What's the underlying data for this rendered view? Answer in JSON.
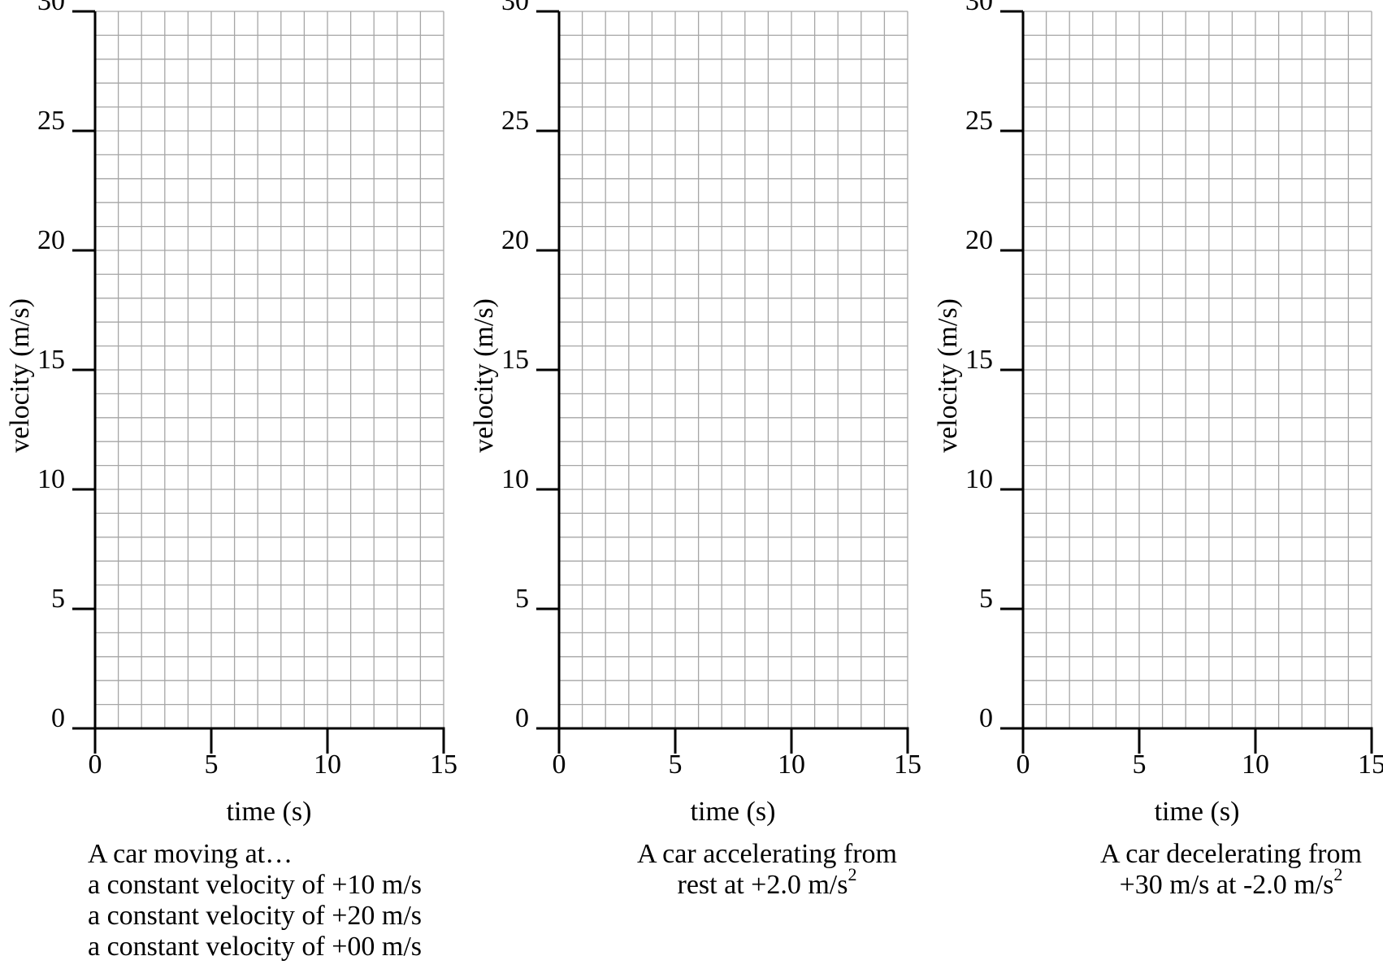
{
  "chart_data": [
    {
      "type": "line",
      "xlabel": "time (s)",
      "ylabel": "velocity (m/s)",
      "xlim": [
        0,
        15
      ],
      "ylim": [
        0,
        30
      ],
      "x_ticks": [
        0,
        5,
        10,
        15
      ],
      "y_ticks": [
        0,
        5,
        10,
        15,
        20,
        25,
        30
      ],
      "x_minor_step": 1,
      "y_minor_step": 1,
      "grid": true,
      "series": [],
      "caption": {
        "lines": [
          "A car moving at…",
          "a constant velocity of +10 m/s",
          "a constant velocity of +20 m/s",
          "a constant velocity of +00 m/s"
        ]
      }
    },
    {
      "type": "line",
      "xlabel": "time (s)",
      "ylabel": "velocity (m/s)",
      "xlim": [
        0,
        15
      ],
      "ylim": [
        0,
        30
      ],
      "x_ticks": [
        0,
        5,
        10,
        15
      ],
      "y_ticks": [
        0,
        5,
        10,
        15,
        20,
        25,
        30
      ],
      "x_minor_step": 1,
      "y_minor_step": 1,
      "grid": true,
      "series": [],
      "caption": {
        "line1": "A car  accelerating from",
        "line2": "rest at +2.0 m/s",
        "line2_sup": "2"
      }
    },
    {
      "type": "line",
      "xlabel": "time (s)",
      "ylabel": "velocity (m/s)",
      "xlim": [
        0,
        15
      ],
      "ylim": [
        0,
        30
      ],
      "x_ticks": [
        0,
        5,
        10,
        15
      ],
      "y_ticks": [
        0,
        5,
        10,
        15,
        20,
        25,
        30
      ],
      "x_minor_step": 1,
      "y_minor_step": 1,
      "grid": true,
      "series": [],
      "caption": {
        "line1": "A car decelerating from",
        "line2": "+30 m/s at -2.0 m/s",
        "line2_sup": "2"
      }
    }
  ]
}
